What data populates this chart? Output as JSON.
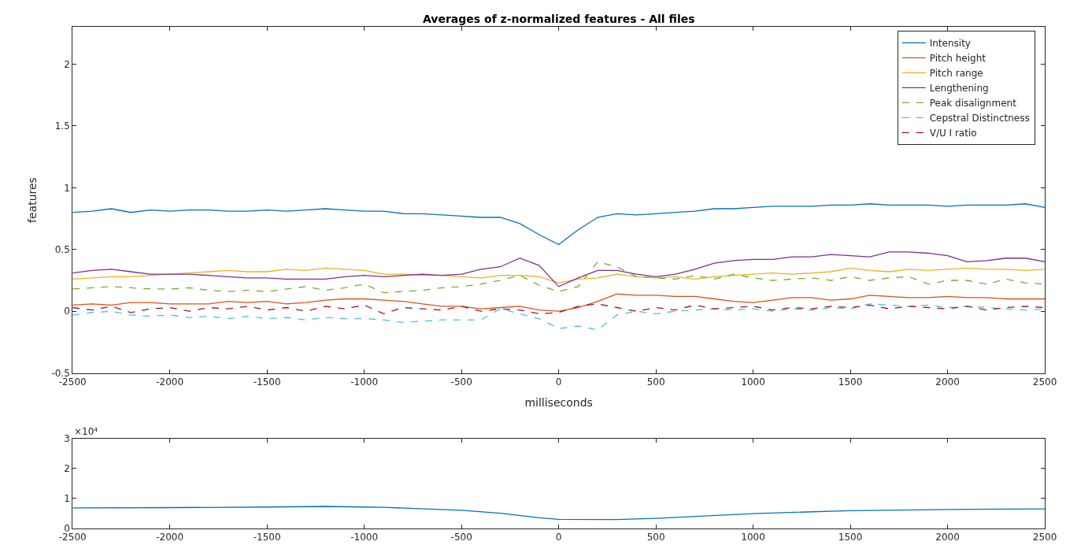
{
  "chart_data": [
    {
      "type": "line",
      "title": "Averages of z-normalized features - All files",
      "xlabel": "milliseconds",
      "ylabel": "features",
      "x": [
        -2500,
        -2400,
        -2300,
        -2200,
        -2100,
        -2000,
        -1900,
        -1800,
        -1700,
        -1600,
        -1500,
        -1400,
        -1300,
        -1200,
        -1100,
        -1000,
        -900,
        -800,
        -700,
        -600,
        -500,
        -400,
        -300,
        -200,
        -100,
        0,
        100,
        200,
        300,
        400,
        500,
        600,
        700,
        800,
        900,
        1000,
        1100,
        1200,
        1300,
        1400,
        1500,
        1600,
        1700,
        1800,
        1900,
        2000,
        2100,
        2200,
        2300,
        2400,
        2500
      ],
      "series": [
        {
          "name": "Intensity",
          "color": "#0072bd",
          "line_style": "solid",
          "values": [
            0.8,
            0.81,
            0.83,
            0.8,
            0.82,
            0.81,
            0.82,
            0.82,
            0.81,
            0.81,
            0.82,
            0.81,
            0.82,
            0.83,
            0.82,
            0.81,
            0.81,
            0.79,
            0.79,
            0.78,
            0.77,
            0.76,
            0.76,
            0.71,
            0.62,
            0.54,
            0.66,
            0.76,
            0.79,
            0.78,
            0.79,
            0.8,
            0.81,
            0.83,
            0.83,
            0.84,
            0.85,
            0.85,
            0.85,
            0.86,
            0.86,
            0.87,
            0.86,
            0.86,
            0.86,
            0.85,
            0.86,
            0.86,
            0.86,
            0.87,
            0.84
          ]
        },
        {
          "name": "Pitch height",
          "color": "#d95319",
          "line_style": "solid",
          "values": [
            0.05,
            0.06,
            0.05,
            0.07,
            0.07,
            0.06,
            0.06,
            0.06,
            0.08,
            0.07,
            0.08,
            0.06,
            0.07,
            0.09,
            0.1,
            0.1,
            0.09,
            0.08,
            0.06,
            0.04,
            0.04,
            0.02,
            0.03,
            0.04,
            0.01,
            0.0,
            0.03,
            0.08,
            0.14,
            0.13,
            0.13,
            0.12,
            0.12,
            0.1,
            0.08,
            0.07,
            0.09,
            0.11,
            0.11,
            0.09,
            0.1,
            0.13,
            0.12,
            0.11,
            0.11,
            0.12,
            0.11,
            0.11,
            0.1,
            0.1,
            0.1
          ]
        },
        {
          "name": "Pitch range",
          "color": "#edb120",
          "line_style": "solid",
          "values": [
            0.26,
            0.27,
            0.28,
            0.28,
            0.29,
            0.3,
            0.31,
            0.32,
            0.33,
            0.32,
            0.32,
            0.34,
            0.33,
            0.35,
            0.34,
            0.33,
            0.3,
            0.3,
            0.29,
            0.29,
            0.28,
            0.27,
            0.29,
            0.29,
            0.28,
            0.23,
            0.26,
            0.27,
            0.3,
            0.28,
            0.27,
            0.28,
            0.26,
            0.28,
            0.29,
            0.3,
            0.31,
            0.3,
            0.31,
            0.32,
            0.35,
            0.33,
            0.32,
            0.34,
            0.33,
            0.34,
            0.35,
            0.34,
            0.34,
            0.33,
            0.34
          ]
        },
        {
          "name": "Lengthening",
          "color": "#7e2f8e",
          "line_style": "solid",
          "values": [
            0.31,
            0.33,
            0.34,
            0.32,
            0.3,
            0.3,
            0.3,
            0.29,
            0.28,
            0.27,
            0.27,
            0.26,
            0.26,
            0.26,
            0.28,
            0.29,
            0.28,
            0.29,
            0.3,
            0.29,
            0.3,
            0.34,
            0.36,
            0.43,
            0.37,
            0.2,
            0.27,
            0.33,
            0.33,
            0.3,
            0.28,
            0.3,
            0.34,
            0.39,
            0.41,
            0.42,
            0.42,
            0.44,
            0.44,
            0.46,
            0.45,
            0.44,
            0.48,
            0.48,
            0.47,
            0.45,
            0.4,
            0.41,
            0.43,
            0.43,
            0.4
          ]
        },
        {
          "name": "Peak disalignment",
          "color": "#77ac30",
          "line_style": "dashed",
          "values": [
            0.18,
            0.19,
            0.2,
            0.19,
            0.18,
            0.18,
            0.19,
            0.17,
            0.16,
            0.17,
            0.16,
            0.18,
            0.2,
            0.17,
            0.19,
            0.22,
            0.15,
            0.16,
            0.17,
            0.19,
            0.2,
            0.22,
            0.25,
            0.29,
            0.21,
            0.16,
            0.2,
            0.4,
            0.36,
            0.28,
            0.27,
            0.26,
            0.29,
            0.26,
            0.3,
            0.27,
            0.25,
            0.26,
            0.27,
            0.25,
            0.28,
            0.25,
            0.27,
            0.28,
            0.22,
            0.25,
            0.25,
            0.22,
            0.26,
            0.23,
            0.22
          ]
        },
        {
          "name": "Cepstral Distinctness",
          "color": "#4dbeee",
          "line_style": "dashed",
          "values": [
            -0.03,
            -0.01,
            0.0,
            -0.03,
            -0.04,
            -0.03,
            -0.05,
            -0.04,
            -0.06,
            -0.04,
            -0.06,
            -0.05,
            -0.07,
            -0.05,
            -0.06,
            -0.06,
            -0.07,
            -0.09,
            -0.08,
            -0.07,
            -0.07,
            -0.07,
            0.02,
            -0.02,
            -0.06,
            -0.14,
            -0.12,
            -0.15,
            -0.03,
            0.0,
            -0.02,
            0.0,
            0.01,
            0.02,
            0.01,
            0.02,
            0.0,
            0.02,
            0.01,
            0.03,
            0.02,
            0.06,
            0.05,
            0.04,
            0.05,
            0.03,
            0.04,
            0.03,
            0.02,
            0.01,
            0.02
          ]
        },
        {
          "name": "V/U I ratio",
          "color": "#a2142f",
          "line_style": "dashed",
          "values": [
            0.03,
            0.01,
            0.04,
            -0.01,
            0.02,
            0.03,
            0.0,
            0.03,
            0.02,
            0.04,
            0.01,
            0.03,
            0.0,
            0.04,
            0.02,
            0.05,
            -0.02,
            0.03,
            0.02,
            0.01,
            0.04,
            0.0,
            0.02,
            0.01,
            -0.02,
            -0.01,
            0.04,
            0.06,
            0.03,
            0.0,
            0.03,
            0.01,
            0.05,
            0.02,
            0.03,
            0.04,
            0.01,
            0.03,
            0.02,
            0.04,
            0.03,
            0.05,
            0.02,
            0.04,
            0.03,
            0.02,
            0.04,
            0.01,
            0.03,
            0.04,
            0.03
          ]
        }
      ],
      "xlim": [
        -2500,
        2500
      ],
      "xticks": [
        -2500,
        -2000,
        -1500,
        -1000,
        -500,
        0,
        500,
        1000,
        1500,
        2000,
        2500
      ],
      "ylim": [
        -0.5,
        2.3
      ],
      "yticks": [
        -0.5,
        0,
        0.5,
        1,
        1.5,
        2
      ],
      "legend": "top right"
    },
    {
      "type": "line",
      "series": [
        {
          "color": "#0072bd",
          "x": [
            -2500,
            -2000,
            -1500,
            -1200,
            -1000,
            -900,
            -500,
            -300,
            -100,
            0,
            300,
            500,
            1000,
            1500,
            2000,
            2500
          ],
          "values": [
            0.68,
            0.69,
            0.71,
            0.73,
            0.71,
            0.7,
            0.6,
            0.5,
            0.35,
            0.3,
            0.29,
            0.33,
            0.49,
            0.59,
            0.63,
            0.65
          ]
        }
      ],
      "annotations": [
        "×10⁴"
      ],
      "xlim": [
        -2500,
        2500
      ],
      "xticks": [
        -2500,
        -2000,
        -1500,
        -1000,
        -500,
        0,
        500,
        1000,
        1500,
        2000,
        2500
      ],
      "ylim": [
        0,
        3
      ],
      "yticks": [
        0,
        1,
        2,
        3
      ],
      "legend": false
    }
  ]
}
